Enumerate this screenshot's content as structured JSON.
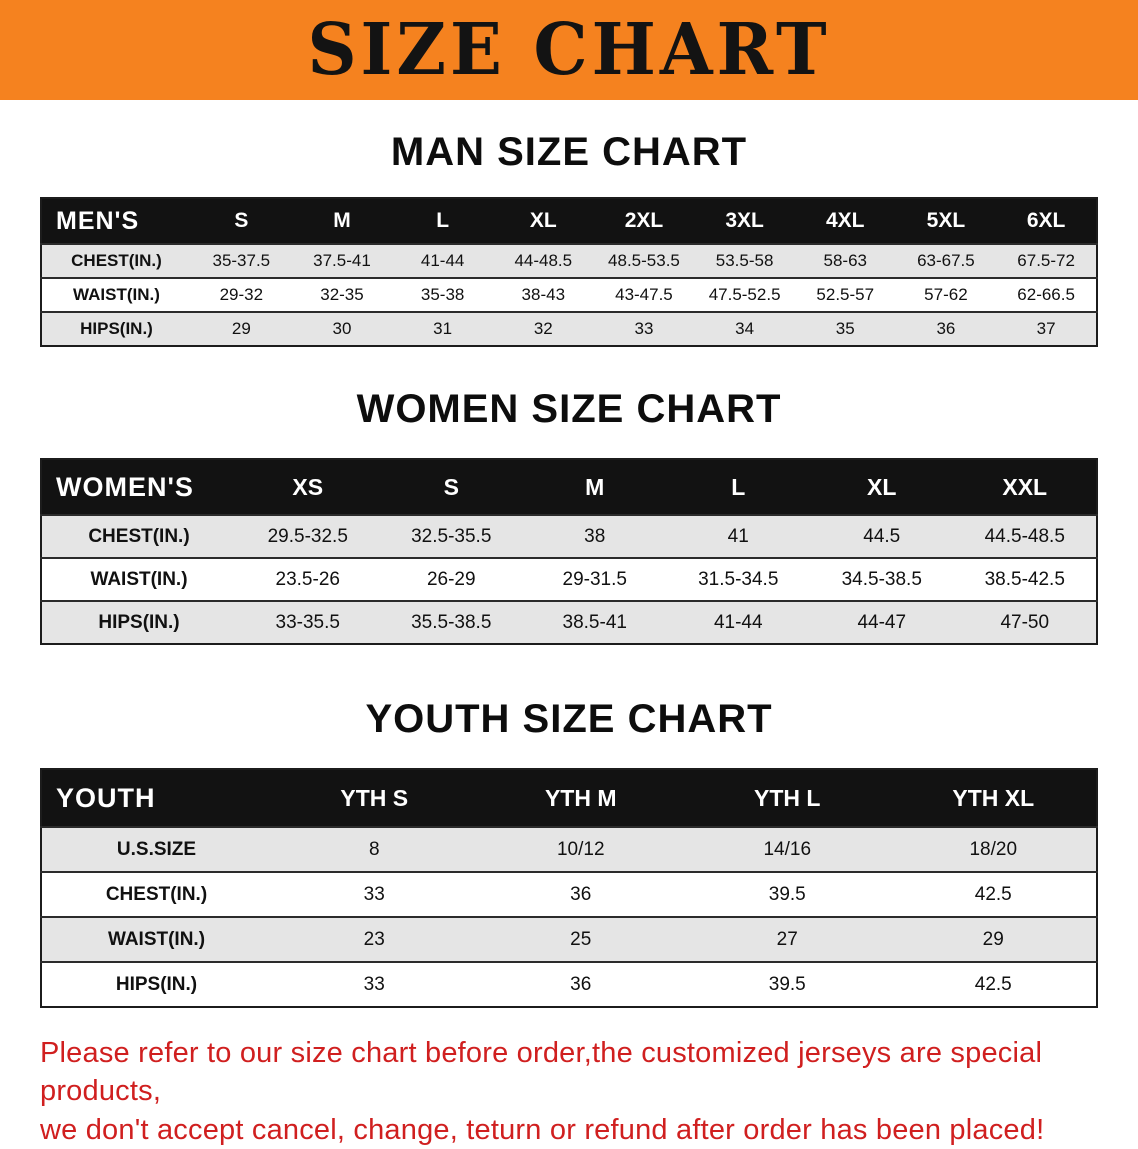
{
  "banner": {
    "title": "SIZE CHART"
  },
  "sections": {
    "men": {
      "heading": "MAN SIZE CHART"
    },
    "women": {
      "heading": "WOMEN SIZE CHART"
    },
    "youth": {
      "heading": "YOUTH SIZE CHART"
    }
  },
  "tables": {
    "men": {
      "name": "MEN'S",
      "columns": [
        "S",
        "M",
        "L",
        "XL",
        "2XL",
        "3XL",
        "4XL",
        "5XL",
        "6XL"
      ],
      "rows": [
        {
          "label": "CHEST(IN.)",
          "values": [
            "35-37.5",
            "37.5-41",
            "41-44",
            "44-48.5",
            "48.5-53.5",
            "53.5-58",
            "58-63",
            "63-67.5",
            "67.5-72"
          ]
        },
        {
          "label": "WAIST(IN.)",
          "values": [
            "29-32",
            "32-35",
            "35-38",
            "38-43",
            "43-47.5",
            "47.5-52.5",
            "52.5-57",
            "57-62",
            "62-66.5"
          ]
        },
        {
          "label": "HIPS(IN.)",
          "values": [
            "29",
            "30",
            "31",
            "32",
            "33",
            "34",
            "35",
            "36",
            "37"
          ]
        }
      ]
    },
    "women": {
      "name": "WOMEN'S",
      "columns": [
        "XS",
        "S",
        "M",
        "L",
        "XL",
        "XXL"
      ],
      "rows": [
        {
          "label": "CHEST(IN.)",
          "values": [
            "29.5-32.5",
            "32.5-35.5",
            "38",
            "41",
            "44.5",
            "44.5-48.5"
          ]
        },
        {
          "label": "WAIST(IN.)",
          "values": [
            "23.5-26",
            "26-29",
            "29-31.5",
            "31.5-34.5",
            "34.5-38.5",
            "38.5-42.5"
          ]
        },
        {
          "label": "HIPS(IN.)",
          "values": [
            "33-35.5",
            "35.5-38.5",
            "38.5-41",
            "41-44",
            "44-47",
            "47-50"
          ]
        }
      ]
    },
    "youth": {
      "name": "YOUTH",
      "columns": [
        "YTH S",
        "YTH M",
        "YTH L",
        "YTH XL"
      ],
      "rows": [
        {
          "label": "U.S.SIZE",
          "values": [
            "8",
            "10/12",
            "14/16",
            "18/20"
          ]
        },
        {
          "label": "CHEST(IN.)",
          "values": [
            "33",
            "36",
            "39.5",
            "42.5"
          ]
        },
        {
          "label": "WAIST(IN.)",
          "values": [
            "23",
            "25",
            "27",
            "29"
          ]
        },
        {
          "label": "HIPS(IN.)",
          "values": [
            "33",
            "36",
            "39.5",
            "42.5"
          ]
        }
      ]
    }
  },
  "disclaimer": {
    "line1": "Please refer to our size chart before order,the customized jerseys are special products,",
    "line2": "we don't accept cancel, change, teturn or refund after order has been placed!"
  },
  "colors": {
    "banner_bg": "#f5821f",
    "table_header_bg": "#121212",
    "row_alt_bg": "#e5e5e5",
    "disclaimer_red": "#d01f1f"
  }
}
